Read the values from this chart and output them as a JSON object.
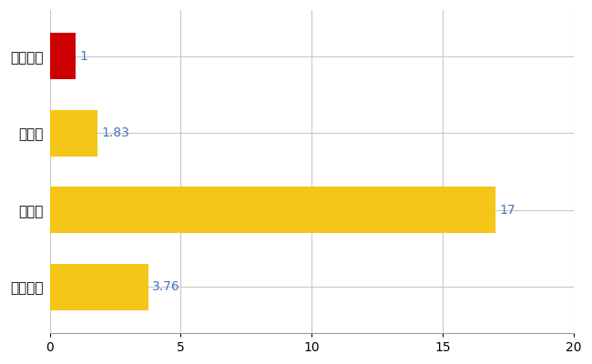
{
  "categories": [
    "山ノ内町",
    "県平均",
    "県最大",
    "全国平均"
  ],
  "values": [
    1,
    1.83,
    17,
    3.76
  ],
  "bar_colors": [
    "#CC0000",
    "#F5C518",
    "#F5C518",
    "#F5C518"
  ],
  "value_labels": [
    "1",
    "1.83",
    "17",
    "3.76"
  ],
  "value_label_color": "#4472C4",
  "xlim": [
    0,
    20
  ],
  "xticks": [
    0,
    5,
    10,
    15,
    20
  ],
  "grid_color": "#C8C8C8",
  "background_color": "#FFFFFF",
  "bar_height": 0.6,
  "label_fontsize": 11,
  "tick_fontsize": 10,
  "value_fontsize": 10
}
